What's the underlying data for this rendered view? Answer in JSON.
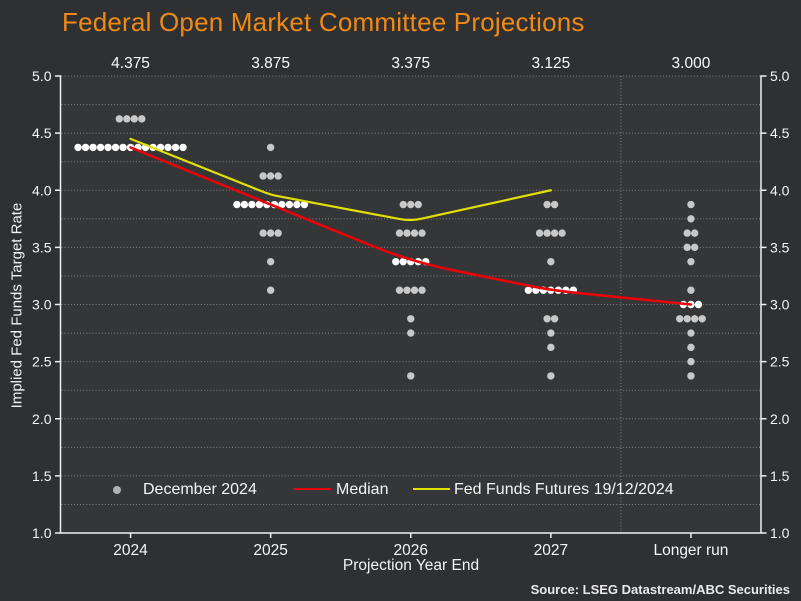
{
  "title": "Federal Open Market Committee Projections",
  "source_note": "Source: LSEG Datastream/ABC Securities",
  "colors": {
    "figure_background": "#2f3032",
    "plot_background": "#353638",
    "title": "#f08a14",
    "axis": "#f0f0f0",
    "tick_text": "#f5f5f5",
    "grid": "#969696",
    "dot": "#c8c8c8",
    "median_dot": "#ffffff",
    "median_line": "#e60508",
    "futures_line": "#e0e004",
    "legend_marker_dot": "#b2b2b2"
  },
  "chart_data": {
    "type": "scatter",
    "title": "Federal Open Market Committee Projections",
    "xlabel": "Projection Year End",
    "ylabel": "Implied Fed Funds Target Rate",
    "ylim": [
      1.0,
      5.0
    ],
    "y_tick_step": 0.5,
    "y_grid_step": 0.25,
    "grid": "dotted",
    "legend_position": "bottom-left-inside",
    "categories": [
      "2024",
      "2025",
      "2026",
      "2027",
      "Longer run"
    ],
    "median_top_labels": [
      "4.375",
      "3.875",
      "3.375",
      "3.125",
      "3.000"
    ],
    "longer_run_separator": true,
    "series": [
      {
        "name": "December 2024",
        "type": "dot_distribution",
        "distributions": [
          {
            "category": "2024",
            "dots": [
              {
                "rate": 4.625,
                "count": 4
              },
              {
                "rate": 4.375,
                "count": 15,
                "median": true
              }
            ]
          },
          {
            "category": "2025",
            "dots": [
              {
                "rate": 4.375,
                "count": 1
              },
              {
                "rate": 4.125,
                "count": 3
              },
              {
                "rate": 3.875,
                "count": 10,
                "median": true
              },
              {
                "rate": 3.625,
                "count": 3
              },
              {
                "rate": 3.375,
                "count": 1
              },
              {
                "rate": 3.125,
                "count": 1
              }
            ]
          },
          {
            "category": "2026",
            "dots": [
              {
                "rate": 3.875,
                "count": 3
              },
              {
                "rate": 3.625,
                "count": 4
              },
              {
                "rate": 3.375,
                "count": 5,
                "median": true
              },
              {
                "rate": 3.125,
                "count": 4
              },
              {
                "rate": 2.875,
                "count": 1
              },
              {
                "rate": 2.75,
                "count": 1
              },
              {
                "rate": 2.375,
                "count": 1
              }
            ]
          },
          {
            "category": "2027",
            "dots": [
              {
                "rate": 3.875,
                "count": 2
              },
              {
                "rate": 3.625,
                "count": 4
              },
              {
                "rate": 3.375,
                "count": 1
              },
              {
                "rate": 3.125,
                "count": 7,
                "median": true
              },
              {
                "rate": 2.875,
                "count": 2
              },
              {
                "rate": 2.75,
                "count": 1
              },
              {
                "rate": 2.625,
                "count": 1
              },
              {
                "rate": 2.375,
                "count": 1
              }
            ]
          },
          {
            "category": "Longer run",
            "dots": [
              {
                "rate": 3.875,
                "count": 1
              },
              {
                "rate": 3.75,
                "count": 1
              },
              {
                "rate": 3.625,
                "count": 2
              },
              {
                "rate": 3.5,
                "count": 2
              },
              {
                "rate": 3.375,
                "count": 1
              },
              {
                "rate": 3.125,
                "count": 1
              },
              {
                "rate": 3.0,
                "count": 3,
                "median": true
              },
              {
                "rate": 2.875,
                "count": 4
              },
              {
                "rate": 2.75,
                "count": 1
              },
              {
                "rate": 2.625,
                "count": 1
              },
              {
                "rate": 2.5,
                "count": 1
              },
              {
                "rate": 2.375,
                "count": 1
              }
            ]
          }
        ]
      },
      {
        "name": "Median",
        "type": "line",
        "color": "#e60508",
        "values": [
          4.375,
          3.875,
          3.375,
          3.125,
          3.0
        ]
      },
      {
        "name": "Fed Funds Futures 19/12/2024",
        "type": "line",
        "color": "#e0e004",
        "values": [
          4.45,
          3.96,
          3.73,
          4.0,
          null
        ]
      }
    ],
    "legend_items": [
      {
        "label": "December 2024",
        "marker": "dot"
      },
      {
        "label": "Median",
        "marker": "line-red"
      },
      {
        "label": "Fed Funds Futures 19/12/2024",
        "marker": "line-yellow"
      }
    ]
  }
}
